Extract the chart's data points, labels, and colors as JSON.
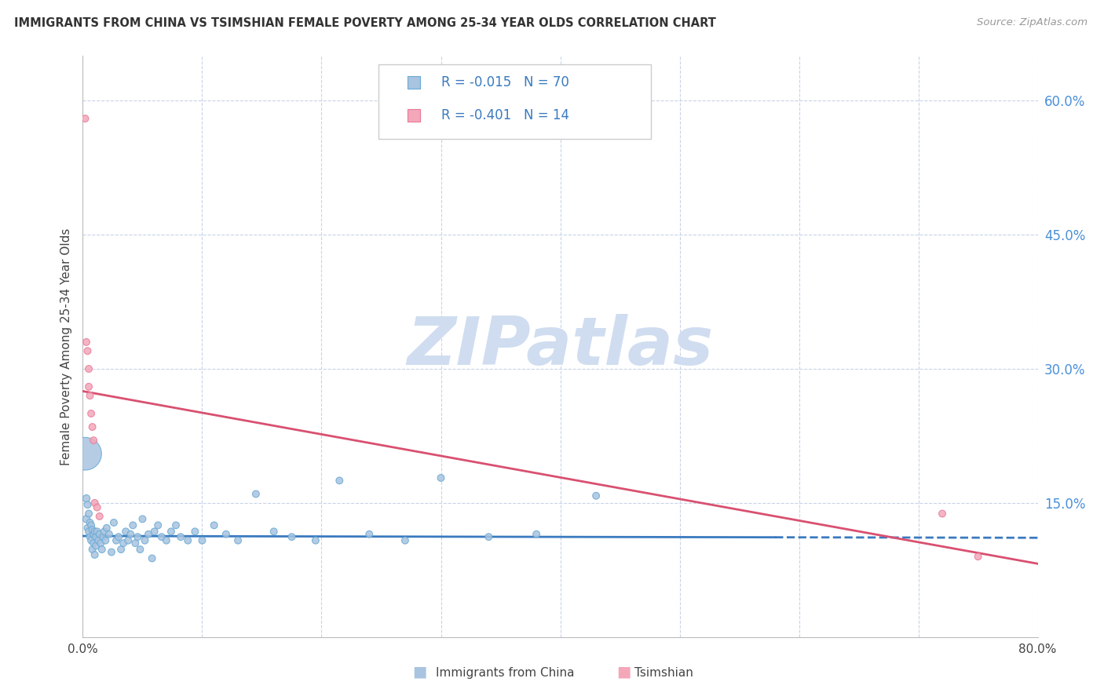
{
  "title": "IMMIGRANTS FROM CHINA VS TSIMSHIAN FEMALE POVERTY AMONG 25-34 YEAR OLDS CORRELATION CHART",
  "source": "Source: ZipAtlas.com",
  "ylabel": "Female Poverty Among 25-34 Year Olds",
  "xlim": [
    0.0,
    0.8
  ],
  "ylim": [
    0.0,
    0.65
  ],
  "xticks": [
    0.0,
    0.1,
    0.2,
    0.3,
    0.4,
    0.5,
    0.6,
    0.7,
    0.8
  ],
  "yticks_right": [
    0.15,
    0.3,
    0.45,
    0.6
  ],
  "ytick_right_labels": [
    "15.0%",
    "30.0%",
    "45.0%",
    "60.0%"
  ],
  "blue_color": "#a8c4e0",
  "blue_edge": "#6aaad4",
  "pink_color": "#f4a7b9",
  "pink_edge": "#e87a9a",
  "trend_blue": "#3a7abf",
  "trend_pink": "#d95070",
  "grid_color": "#c8d4e8",
  "watermark_color": "#d0ddf0",
  "legend_r_blue": "R = -0.015",
  "legend_n_blue": "N = 70",
  "legend_r_pink": "R = -0.401",
  "legend_n_pink": "N = 14",
  "blue_scatter_x": [
    0.003,
    0.003,
    0.004,
    0.004,
    0.005,
    0.005,
    0.006,
    0.006,
    0.007,
    0.007,
    0.008,
    0.008,
    0.009,
    0.009,
    0.01,
    0.01,
    0.011,
    0.011,
    0.012,
    0.013,
    0.014,
    0.015,
    0.016,
    0.017,
    0.018,
    0.019,
    0.02,
    0.022,
    0.024,
    0.026,
    0.028,
    0.03,
    0.032,
    0.034,
    0.036,
    0.038,
    0.04,
    0.042,
    0.044,
    0.046,
    0.048,
    0.05,
    0.052,
    0.055,
    0.058,
    0.06,
    0.063,
    0.066,
    0.07,
    0.074,
    0.078,
    0.082,
    0.088,
    0.094,
    0.1,
    0.11,
    0.12,
    0.13,
    0.145,
    0.16,
    0.175,
    0.195,
    0.215,
    0.24,
    0.27,
    0.3,
    0.34,
    0.38,
    0.43,
    0.002
  ],
  "blue_scatter_y": [
    0.155,
    0.132,
    0.148,
    0.122,
    0.138,
    0.118,
    0.128,
    0.112,
    0.125,
    0.108,
    0.12,
    0.098,
    0.115,
    0.105,
    0.118,
    0.092,
    0.112,
    0.102,
    0.118,
    0.108,
    0.115,
    0.105,
    0.098,
    0.112,
    0.118,
    0.108,
    0.122,
    0.115,
    0.095,
    0.128,
    0.108,
    0.112,
    0.098,
    0.105,
    0.118,
    0.108,
    0.115,
    0.125,
    0.105,
    0.112,
    0.098,
    0.132,
    0.108,
    0.115,
    0.088,
    0.118,
    0.125,
    0.112,
    0.108,
    0.118,
    0.125,
    0.112,
    0.108,
    0.118,
    0.108,
    0.125,
    0.115,
    0.108,
    0.16,
    0.118,
    0.112,
    0.108,
    0.175,
    0.115,
    0.108,
    0.178,
    0.112,
    0.115,
    0.158,
    0.205
  ],
  "blue_scatter_sizes": [
    45,
    45,
    40,
    40,
    40,
    40,
    40,
    40,
    40,
    40,
    40,
    40,
    40,
    40,
    40,
    40,
    40,
    40,
    40,
    40,
    40,
    40,
    40,
    40,
    40,
    40,
    40,
    40,
    40,
    40,
    40,
    40,
    40,
    40,
    40,
    40,
    40,
    40,
    40,
    40,
    40,
    40,
    40,
    40,
    40,
    40,
    40,
    40,
    40,
    40,
    40,
    40,
    40,
    40,
    40,
    40,
    40,
    40,
    40,
    40,
    40,
    40,
    40,
    40,
    40,
    40,
    40,
    40,
    40,
    900
  ],
  "pink_scatter_x": [
    0.002,
    0.003,
    0.004,
    0.005,
    0.005,
    0.006,
    0.007,
    0.008,
    0.009,
    0.01,
    0.012,
    0.014,
    0.72,
    0.75
  ],
  "pink_scatter_y": [
    0.58,
    0.33,
    0.32,
    0.3,
    0.28,
    0.27,
    0.25,
    0.235,
    0.22,
    0.15,
    0.145,
    0.135,
    0.138,
    0.09
  ],
  "pink_scatter_sizes": [
    40,
    40,
    40,
    40,
    40,
    40,
    40,
    40,
    40,
    40,
    40,
    40,
    40,
    40
  ],
  "blue_trend_y0": 0.113,
  "blue_trend_y1": 0.111,
  "blue_trend_solid_end": 0.58,
  "pink_trend_y0": 0.275,
  "pink_trend_y1": 0.082
}
